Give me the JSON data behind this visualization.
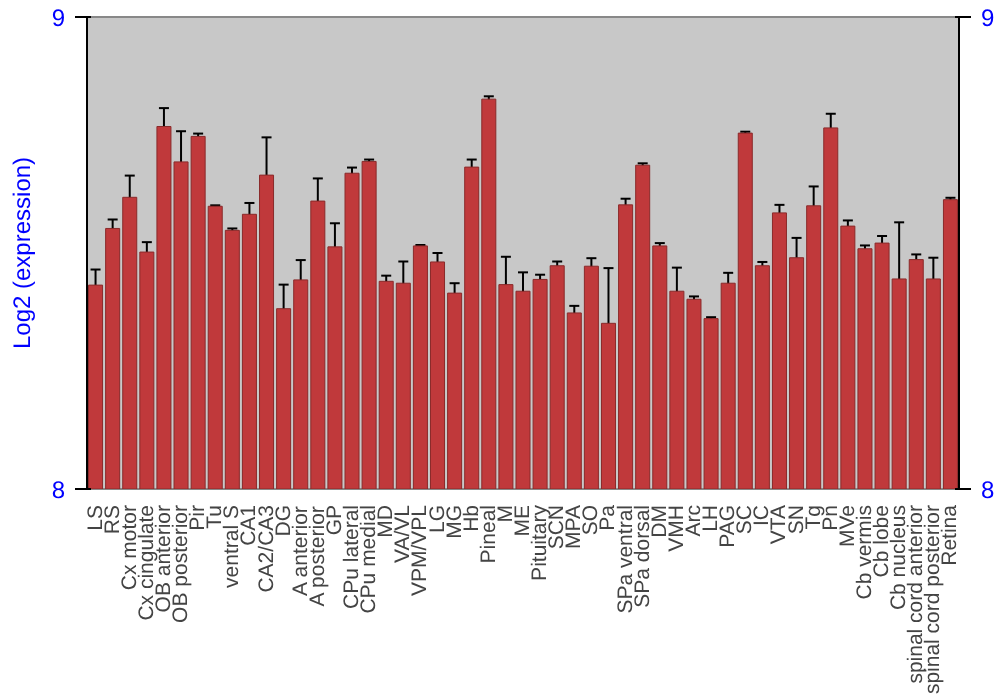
{
  "chart_data": {
    "type": "bar",
    "ylabel": "Log2 (expression)",
    "categories": [
      "LS",
      "RS",
      "Cx motor",
      "Cx cingulate",
      "OB anterior",
      "OB posterior",
      "Pir",
      "Tu",
      "ventral S",
      "CA1",
      "CA2/CA3",
      "DG",
      "A anterior",
      "A posterior",
      "GP",
      "CPu lateral",
      "CPu medial",
      "MD",
      "VA/VL",
      "VPM/VPL",
      "LG",
      "MG",
      "Hb",
      "Pineal",
      "M",
      "ME",
      "Pituitary",
      "SCN",
      "MPA",
      "SO",
      "Pa",
      "SPa ventral",
      "SPa dorsal",
      "DM",
      "VMH",
      "Arc",
      "LH",
      "PAG",
      "SC",
      "IC",
      "VTA",
      "SN",
      "Tg",
      "Pn",
      "MVe",
      "Cb vermis",
      "Cb lobe",
      "Cb nucleus",
      "spinal cord anterior",
      "spinal cord posterior",
      "Retina"
    ],
    "values": [
      8.432,
      8.552,
      8.618,
      8.502,
      8.768,
      8.693,
      8.747,
      8.599,
      8.548,
      8.582,
      8.665,
      8.382,
      8.443,
      8.61,
      8.513,
      8.669,
      8.694,
      8.44,
      8.436,
      8.515,
      8.481,
      8.415,
      8.682,
      8.826,
      8.433,
      8.419,
      8.444,
      8.473,
      8.373,
      8.472,
      8.351,
      8.602,
      8.686,
      8.515,
      8.419,
      8.402,
      8.361,
      8.436,
      8.754,
      8.473,
      8.585,
      8.49,
      8.6,
      8.765,
      8.557,
      8.509,
      8.521,
      8.445,
      8.486,
      8.445,
      8.613
    ],
    "errors": [
      0.033,
      0.019,
      0.046,
      0.021,
      0.039,
      0.065,
      0.006,
      0.002,
      0.004,
      0.024,
      0.08,
      0.051,
      0.042,
      0.048,
      0.05,
      0.012,
      0.004,
      0.012,
      0.046,
      0.002,
      0.019,
      0.021,
      0.016,
      0.006,
      0.059,
      0.04,
      0.01,
      0.009,
      0.015,
      0.017,
      0.117,
      0.013,
      0.004,
      0.006,
      0.05,
      0.006,
      0.003,
      0.022,
      0.003,
      0.008,
      0.017,
      0.042,
      0.041,
      0.03,
      0.012,
      0.007,
      0.015,
      0.12,
      0.011,
      0.045,
      0.004
    ],
    "color": "#c0393b",
    "ylim": [
      8,
      9
    ],
    "yticks": [
      8,
      9
    ],
    "y2lim": [
      8,
      9
    ],
    "y2ticks": [
      8,
      9
    ],
    "grid": false
  }
}
